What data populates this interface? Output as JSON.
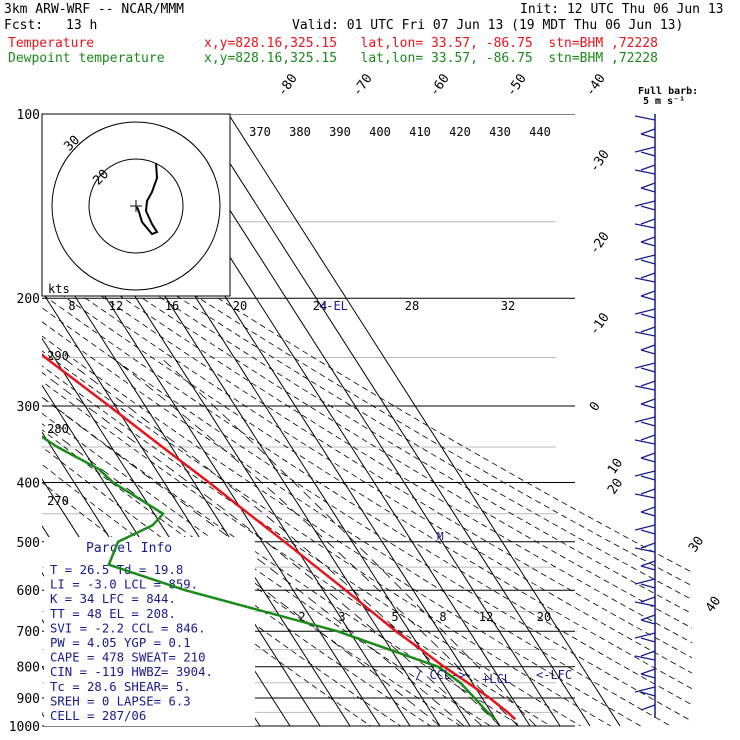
{
  "header": {
    "model": "3km ARW-WRF -- NCAR/MMM",
    "init": "Init: 12 UTC Thu 06 Jun 13",
    "fcst_label": "Fcst:",
    "fcst_value": "13 h",
    "valid": "Valid: 01 UTC Fri 07 Jun 13 (19 MDT Thu 06 Jun 13)",
    "temp_label": "Temperature",
    "temp_loc": "x,y=828.16,325.15   lat,lon= 33.57, -86.75  stn=BHM ,72228",
    "dew_label": "Dewpoint temperature",
    "dew_loc": "x,y=828.16,325.15   lat,lon= 33.57, -86.75  stn=BHM ,72228"
  },
  "barb_title": {
    "line1": "Full barb:",
    "line2": "5 m s⁻¹"
  },
  "hodograph": {
    "units_label": "kts",
    "ring_labels": [
      "30",
      "20"
    ]
  },
  "parcel_info": {
    "title": "Parcel Info",
    "rows": [
      "T  =    26.5  Td =  19.8",
      "LI =    -3.0  LCL =  859.",
      "K  =      34  LFC =  844.",
      "TT =      48  EL  =  208.",
      "SVI =   -2.2  CCL =  846.",
      "PW =    4.05  YGP =   0.1",
      "CAPE =   478  SWEAT=  210",
      "CIN =   -119  HWBZ= 3904.",
      "Tc =    28.6  SHEAR=   5.",
      "SREH =     0  LAPSE=  6.3",
      "CELL = 287/06"
    ]
  },
  "annotations": {
    "el": "EL",
    "ccl": "CCL",
    "lcl": "LCL",
    "lfc": "<-LFC",
    "m": "M"
  },
  "colors": {
    "temperature": "#e8141c",
    "dewpoint": "#1b8a1b",
    "wind": "#1a1a8c",
    "grid": "#000000"
  },
  "chart_data": {
    "type": "line",
    "subtype": "skew-T log-p diagram",
    "ylabel": "",
    "y_axis_log_pressure_hPa": [
      100,
      200,
      300,
      400,
      500,
      600,
      700,
      800,
      900,
      1000
    ],
    "ylim": [
      1000,
      100
    ],
    "isotherm_labels_C": [
      -80,
      -70,
      -60,
      -50,
      -40,
      -30,
      -20,
      -10,
      0,
      10,
      20,
      30,
      40
    ],
    "dry_adiabat_labels_K": [
      370,
      380,
      390,
      400,
      410,
      420,
      430,
      440
    ],
    "left_adiabat_labels_K": [
      290,
      280,
      270
    ],
    "mixing_ratio_top_labels": [
      8,
      12,
      16,
      20,
      24,
      28,
      32
    ],
    "mixing_ratio_bottom_labels": [
      2,
      3,
      5,
      8,
      12,
      20
    ],
    "series": [
      {
        "name": "Temperature",
        "points": [
          [
            100,
            -70.3
          ],
          [
            110,
            -71.5
          ],
          [
            120,
            -72.0
          ],
          [
            130,
            -72.5
          ],
          [
            140,
            -73.0
          ],
          [
            150,
            -73.0
          ],
          [
            160,
            -72.0
          ],
          [
            175,
            -69.0
          ],
          [
            200,
            -63.0
          ],
          [
            250,
            -53.0
          ],
          [
            300,
            -42.0
          ],
          [
            350,
            -33.0
          ],
          [
            400,
            -25.0
          ],
          [
            450,
            -18.5
          ],
          [
            500,
            -12.5
          ],
          [
            600,
            -2.5
          ],
          [
            700,
            5.5
          ],
          [
            750,
            10.0
          ],
          [
            800,
            14.0
          ],
          [
            850,
            18.5
          ],
          [
            900,
            22.5
          ],
          [
            950,
            25.5
          ],
          [
            975,
            26.5
          ]
        ]
      },
      {
        "name": "Dewpoint temperature",
        "points": [
          [
            100,
            -88.0
          ],
          [
            120,
            -93.5
          ],
          [
            140,
            -98.0
          ],
          [
            150,
            -97.5
          ],
          [
            170,
            -92.0
          ],
          [
            200,
            -85.0
          ],
          [
            240,
            -75.0
          ],
          [
            250,
            -76.0
          ],
          [
            270,
            -84.0
          ],
          [
            300,
            -80.0
          ],
          [
            350,
            -68.0
          ],
          [
            380,
            -59.0
          ],
          [
            400,
            -57.0
          ],
          [
            450,
            -47.0
          ],
          [
            470,
            -53.0
          ],
          [
            500,
            -68.0
          ],
          [
            545,
            -76.0
          ],
          [
            600,
            -56.0
          ],
          [
            700,
            -14.0
          ],
          [
            760,
            2.0
          ],
          [
            800,
            12.0
          ],
          [
            850,
            16.0
          ],
          [
            900,
            17.5
          ],
          [
            940,
            18.5
          ],
          [
            975,
            19.8
          ]
        ]
      }
    ]
  }
}
